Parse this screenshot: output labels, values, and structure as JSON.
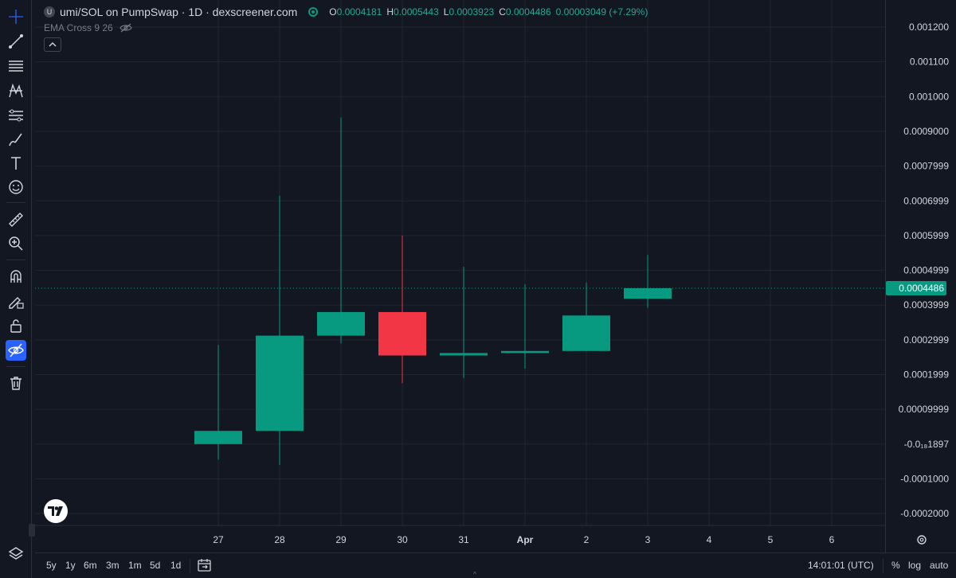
{
  "header": {
    "symbol_badge": "U",
    "title": "umi/SOL on PumpSwap · 1D · dexscreener.com",
    "ohlc": [
      {
        "key": "O",
        "value": "0.0004181"
      },
      {
        "key": "H",
        "value": "0.0005443"
      },
      {
        "key": "L",
        "value": "0.0003923"
      },
      {
        "key": "C",
        "value": "0.0004486"
      }
    ],
    "change": "0.00003049 (+7.29%)",
    "indicator": "EMA Cross 9 26",
    "visibility_icon": "eye-off-icon"
  },
  "colors": {
    "up": "#089981",
    "down": "#f23645",
    "background": "#131722",
    "grid": "#2a2e39",
    "accent": "#2962ff"
  },
  "toolbar": {
    "tools": [
      "crosshair-icon",
      "trend-line-icon",
      "fib-retracement-icon",
      "pattern-icon",
      "prediction-icon",
      "brush-icon",
      "text-icon",
      "emoji-icon",
      "ruler-icon",
      "zoom-in-icon",
      "magnet-icon",
      "lock-pencil-icon",
      "lock-icon",
      "hide-drawings-icon",
      "trash-icon",
      "layers-icon"
    ]
  },
  "bottom_bar": {
    "intervals": [
      "5y",
      "1y",
      "6m",
      "3m",
      "1m",
      "5d",
      "1d"
    ],
    "time": "14:01:01 (UTC)",
    "percent": "%",
    "log": "log",
    "auto": "auto"
  },
  "chart_data": {
    "type": "candlestick",
    "x_ticks": [
      "27",
      "28",
      "29",
      "30",
      "31",
      "Apr",
      "2",
      "3",
      "4",
      "5",
      "6"
    ],
    "y_ticks": [
      "0.001200",
      "0.001100",
      "0.001000",
      "0.0009000",
      "0.0007999",
      "0.0006999",
      "0.0005999",
      "0.0004999",
      "0.0003999",
      "0.0002999",
      "0.0001999",
      "0.00009999",
      "-0.0₁₈1897",
      "-0.0001000",
      "-0.0002000"
    ],
    "ylim": [
      -0.00023,
      0.00122
    ],
    "current_price_label": "0.0004486",
    "current_price": 0.0004486,
    "candles": [
      {
        "x": "27",
        "open": 0.0,
        "high": 0.000285,
        "low": -4.5e-05,
        "close": 3.8e-05
      },
      {
        "x": "28",
        "open": 3.8e-05,
        "high": 0.000715,
        "low": -6e-05,
        "close": 0.000312
      },
      {
        "x": "29",
        "open": 0.000312,
        "high": 0.00094,
        "low": 0.00029,
        "close": 0.00038
      },
      {
        "x": "30",
        "open": 0.00038,
        "high": 0.0006,
        "low": 0.000175,
        "close": 0.000255
      },
      {
        "x": "31",
        "open": 0.000255,
        "high": 0.00051,
        "low": 0.00019,
        "close": 0.000262
      },
      {
        "x": "Apr",
        "open": 0.000262,
        "high": 0.00046,
        "low": 0.000217,
        "close": 0.000268
      },
      {
        "x": "2",
        "open": 0.000268,
        "high": 0.000465,
        "low": 0.000268,
        "close": 0.00037
      },
      {
        "x": "3",
        "open": 0.0004181,
        "high": 0.0005443,
        "low": 0.0003923,
        "close": 0.0004486
      }
    ]
  }
}
